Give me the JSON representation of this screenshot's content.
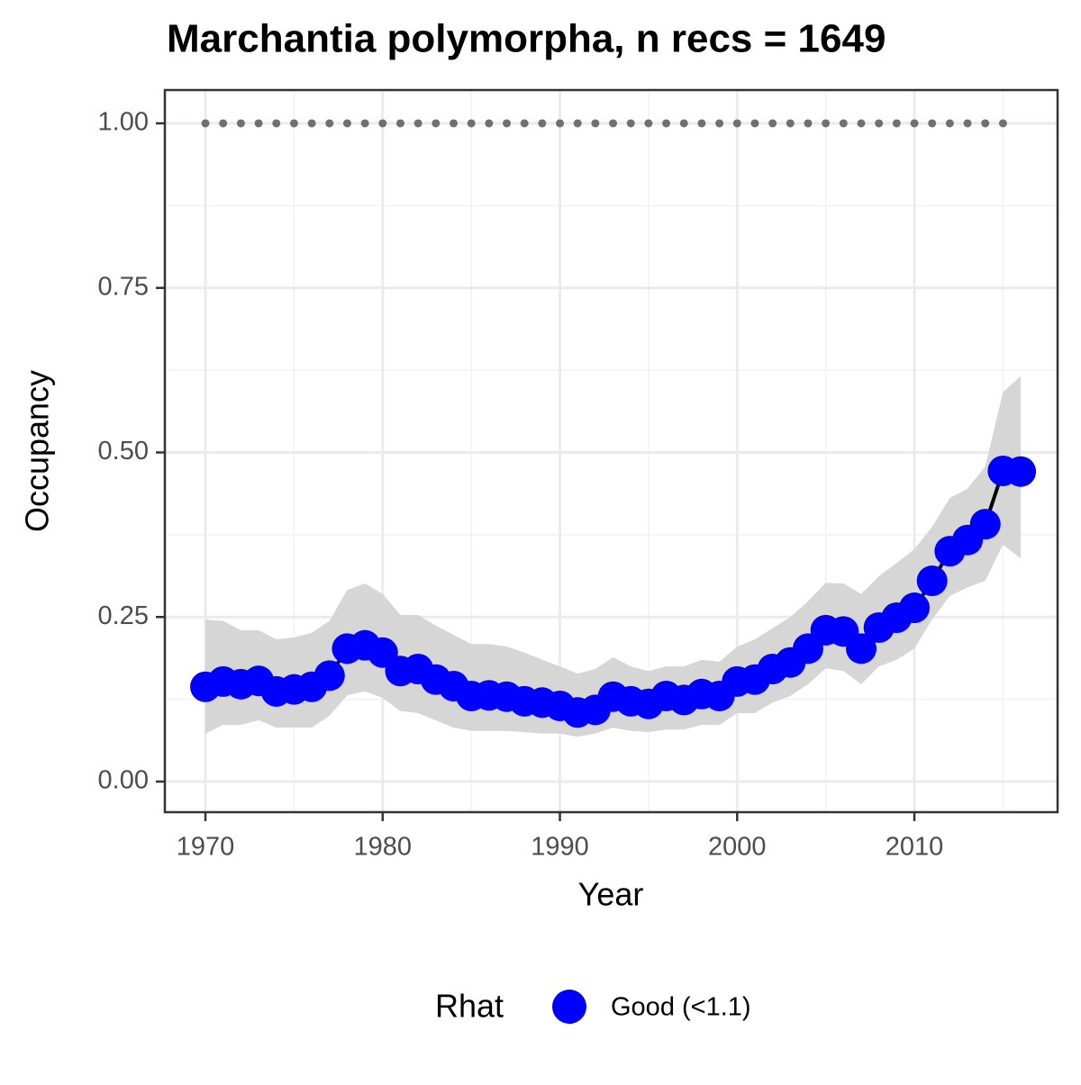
{
  "chart_data": {
    "type": "line",
    "title": "Marchantia polymorpha, n recs = 1649",
    "x_label": "Year",
    "y_label": "Occupancy",
    "legend": {
      "title": "Rhat",
      "entries": [
        {
          "name": "Good (<1.1)",
          "color": "#0000ff"
        }
      ],
      "position": "bottom"
    },
    "x": [
      1970,
      1971,
      1972,
      1973,
      1974,
      1975,
      1976,
      1977,
      1978,
      1979,
      1980,
      1981,
      1982,
      1983,
      1984,
      1985,
      1986,
      1987,
      1988,
      1989,
      1990,
      1991,
      1992,
      1993,
      1994,
      1995,
      1996,
      1997,
      1998,
      1999,
      2000,
      2001,
      2002,
      2003,
      2004,
      2005,
      2006,
      2007,
      2008,
      2009,
      2010,
      2011,
      2012,
      2013,
      2014,
      2015,
      2016
    ],
    "values": [
      0.144,
      0.152,
      0.148,
      0.153,
      0.137,
      0.14,
      0.144,
      0.161,
      0.202,
      0.207,
      0.196,
      0.168,
      0.171,
      0.155,
      0.145,
      0.13,
      0.131,
      0.129,
      0.122,
      0.12,
      0.115,
      0.105,
      0.109,
      0.129,
      0.122,
      0.118,
      0.13,
      0.124,
      0.133,
      0.13,
      0.152,
      0.155,
      0.171,
      0.181,
      0.202,
      0.23,
      0.228,
      0.202,
      0.234,
      0.249,
      0.264,
      0.305,
      0.35,
      0.367,
      0.391,
      0.472,
      0.471
    ],
    "upper": [
      0.246,
      0.244,
      0.23,
      0.23,
      0.216,
      0.219,
      0.226,
      0.244,
      0.291,
      0.301,
      0.285,
      0.253,
      0.253,
      0.237,
      0.223,
      0.209,
      0.209,
      0.205,
      0.196,
      0.185,
      0.175,
      0.164,
      0.171,
      0.189,
      0.175,
      0.168,
      0.175,
      0.175,
      0.185,
      0.182,
      0.205,
      0.216,
      0.233,
      0.25,
      0.274,
      0.302,
      0.301,
      0.285,
      0.312,
      0.332,
      0.353,
      0.387,
      0.431,
      0.445,
      0.479,
      0.592,
      0.616
    ],
    "lower": [
      0.073,
      0.086,
      0.086,
      0.093,
      0.082,
      0.082,
      0.082,
      0.1,
      0.131,
      0.137,
      0.127,
      0.107,
      0.104,
      0.093,
      0.082,
      0.077,
      0.077,
      0.077,
      0.075,
      0.073,
      0.073,
      0.068,
      0.073,
      0.082,
      0.077,
      0.075,
      0.079,
      0.079,
      0.086,
      0.086,
      0.104,
      0.104,
      0.12,
      0.13,
      0.148,
      0.172,
      0.168,
      0.148,
      0.175,
      0.185,
      0.202,
      0.246,
      0.282,
      0.295,
      0.305,
      0.36,
      0.339
    ],
    "point_color": "#0000ff",
    "line_color": "#000000",
    "band_color": "#d6d6d6",
    "reference": {
      "color": "#707070",
      "x": [
        1970,
        1971,
        1972,
        1973,
        1974,
        1975,
        1976,
        1977,
        1978,
        1979,
        1980,
        1981,
        1982,
        1983,
        1984,
        1985,
        1986,
        1987,
        1988,
        1989,
        1990,
        1991,
        1992,
        1993,
        1994,
        1995,
        1996,
        1997,
        1998,
        1999,
        2000,
        2001,
        2002,
        2003,
        2004,
        2005,
        2006,
        2007,
        2008,
        2009,
        2010,
        2011,
        2012,
        2013,
        2014,
        2015
      ],
      "values": [
        1,
        1,
        1,
        1,
        1,
        1,
        1,
        1,
        1,
        1,
        1,
        1,
        1,
        1,
        1,
        1,
        1,
        1,
        1,
        1,
        1,
        1,
        1,
        1,
        1,
        1,
        1,
        1,
        1,
        1,
        1,
        1,
        1,
        1,
        1,
        1,
        1,
        1,
        1,
        1,
        1,
        1,
        1,
        1,
        1,
        1
      ]
    },
    "xlim": [
      1967.71,
      2018.08
    ],
    "ylim": [
      -0.0465,
      1.0506
    ],
    "xticks": [
      1970,
      1980,
      1990,
      2000,
      2010
    ],
    "yticks": [
      {
        "value": 0,
        "label": "0.00"
      },
      {
        "value": 0.25,
        "label": "0.25"
      },
      {
        "value": 0.5,
        "label": "0.50"
      },
      {
        "value": 0.75,
        "label": "0.75"
      },
      {
        "value": 1,
        "label": "1.00"
      }
    ],
    "xminor": [
      1975,
      1985,
      1995,
      2005,
      2015
    ],
    "yminor": [
      0.125,
      0.375,
      0.625,
      0.875
    ],
    "grid": true
  }
}
